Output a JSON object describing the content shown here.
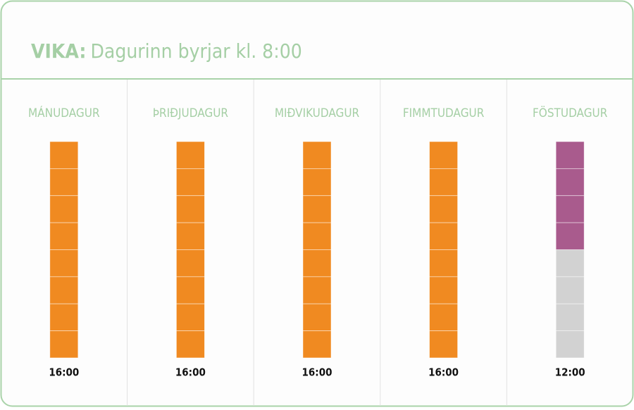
{
  "header": {
    "label": "VIKA:",
    "title": "Dagurinn byrjar kl. 8:00"
  },
  "days": [
    {
      "name": "MÁNUDAGUR",
      "end": "16:00",
      "color": "#f08a21"
    },
    {
      "name": "ÞRIÐJUDAGUR",
      "end": "16:00",
      "color": "#f08a21"
    },
    {
      "name": "MIÐVIKUDAGUR",
      "end": "16:00",
      "color": "#f08a21"
    },
    {
      "name": "FIMMTUDAGUR",
      "end": "16:00",
      "color": "#f08a21"
    },
    {
      "name": "FÖSTUDAGUR",
      "end": "12:00",
      "color": "#a95b8d"
    }
  ],
  "empty_color": "#d2d2d2"
}
